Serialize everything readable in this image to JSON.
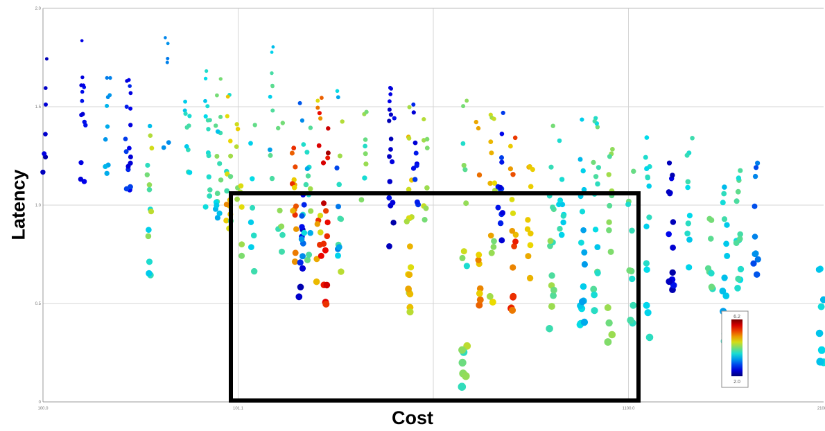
{
  "chart_data": {
    "type": "scatter",
    "title": "",
    "xlabel": "Cost",
    "ylabel": "Latency",
    "xlim": [
      100,
      2100
    ],
    "ylim": [
      0,
      2
    ],
    "x_ticks": [
      "100.0",
      "101.1",
      "",
      "1100.0",
      "2100.0"
    ],
    "y_ticks": [
      "0",
      "0.5",
      "1.0",
      "1.5",
      "2.0"
    ],
    "grid": true,
    "colorbar": {
      "min_label": "2.0",
      "max_label": "6.2",
      "min": 2.0,
      "max": 6.2,
      "colormap": "jet",
      "placement": "inside-lower-right"
    },
    "highlight_box": {
      "x_range": [
        1000,
        3100
      ],
      "y_range": [
        0,
        1.06
      ],
      "color": "#000000"
    },
    "points_summary": "dense vertical columns of colored points; color = third variable",
    "points": []
  }
}
